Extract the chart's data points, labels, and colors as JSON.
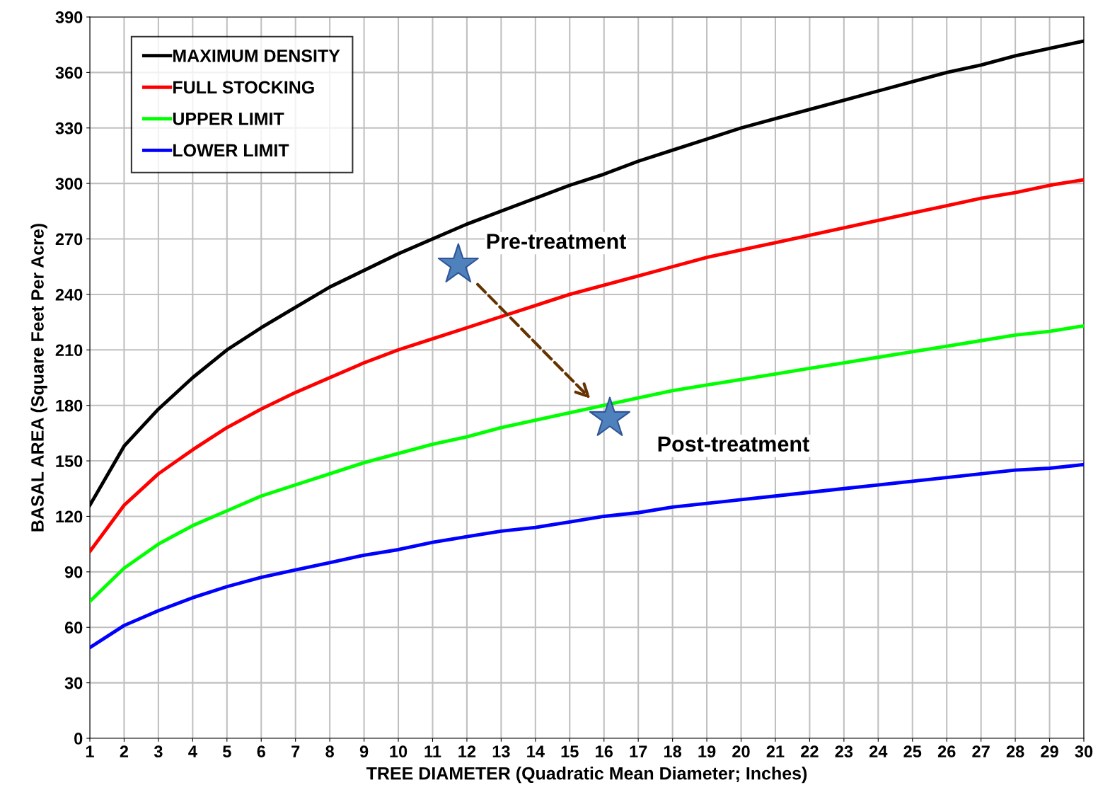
{
  "chart_data": {
    "type": "line",
    "xlabel": "TREE DIAMETER (Quadratic Mean Diameter; Inches)",
    "ylabel": "BASAL AREA (Square Feet Per Acre)",
    "x": [
      1,
      2,
      3,
      4,
      5,
      6,
      7,
      8,
      9,
      10,
      11,
      12,
      13,
      14,
      15,
      16,
      17,
      18,
      19,
      20,
      21,
      22,
      23,
      24,
      25,
      26,
      27,
      28,
      29,
      30
    ],
    "series": [
      {
        "name": "MAXIMUM DENSITY",
        "color": "#000000",
        "values": [
          126,
          158,
          178,
          195,
          210,
          222,
          233,
          244,
          253,
          262,
          270,
          278,
          285,
          292,
          299,
          305,
          312,
          318,
          324,
          330,
          335,
          340,
          345,
          350,
          355,
          360,
          364,
          369,
          373,
          377
        ]
      },
      {
        "name": "FULL STOCKING",
        "color": "#ff0000",
        "values": [
          101,
          126,
          143,
          156,
          168,
          178,
          187,
          195,
          203,
          210,
          216,
          222,
          228,
          234,
          240,
          245,
          250,
          255,
          260,
          264,
          268,
          272,
          276,
          280,
          284,
          288,
          292,
          295,
          299,
          302
        ]
      },
      {
        "name": "UPPER LIMIT",
        "color": "#00ff00",
        "values": [
          74,
          92,
          105,
          115,
          123,
          131,
          137,
          143,
          149,
          154,
          159,
          163,
          168,
          172,
          176,
          180,
          184,
          188,
          191,
          194,
          197,
          200,
          203,
          206,
          209,
          212,
          215,
          218,
          220,
          223
        ]
      },
      {
        "name": "LOWER LIMIT",
        "color": "#0000ff",
        "values": [
          49,
          61,
          69,
          76,
          82,
          87,
          91,
          95,
          99,
          102,
          106,
          109,
          112,
          114,
          117,
          120,
          122,
          125,
          127,
          129,
          131,
          133,
          135,
          137,
          139,
          141,
          143,
          145,
          146,
          148
        ]
      },
      {
        "type": "scatter",
        "marker": "star",
        "color": "#4f81bd",
        "x": [
          11.75,
          16.17
        ],
        "values": [
          256,
          173
        ]
      }
    ],
    "annotations": [
      {
        "text": "Pre-treatment",
        "x": 11.75,
        "y": 256
      },
      {
        "text": "Post-treatment",
        "x": 16.17,
        "y": 173
      }
    ],
    "xlim": [
      1,
      30
    ],
    "xticks": [
      1,
      2,
      3,
      4,
      5,
      6,
      7,
      8,
      9,
      10,
      11,
      12,
      13,
      14,
      15,
      16,
      17,
      18,
      19,
      20,
      21,
      22,
      23,
      24,
      25,
      26,
      27,
      28,
      29,
      30
    ],
    "ylim": [
      0,
      390
    ],
    "yticks": [
      0,
      30,
      60,
      90,
      120,
      150,
      180,
      210,
      240,
      270,
      300,
      330,
      360,
      390
    ],
    "grid": true,
    "legend": "top left",
    "marker": "none",
    "line_style": "solid"
  }
}
